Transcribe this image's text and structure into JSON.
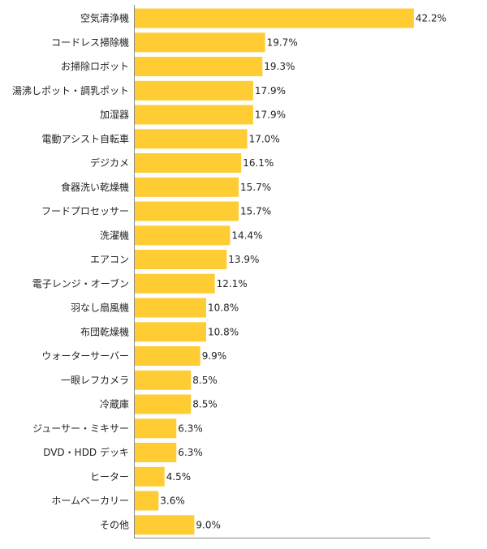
{
  "chart_data": {
    "type": "bar",
    "orientation": "horizontal",
    "categories": [
      "空気清浄機",
      "コードレス掃除機",
      "お掃除ロボット",
      "湯沸しポット・調乳ポット",
      "加湿器",
      "電動アシスト自転車",
      "デジカメ",
      "食器洗い乾燥機",
      "フードプロセッサー",
      "洗濯機",
      "エアコン",
      "電子レンジ・オーブン",
      "羽なし扇風機",
      "布団乾燥機",
      "ウォーターサーバー",
      "一眼レフカメラ",
      "冷蔵庫",
      "ジューサー・ミキサー",
      "DVD・HDD デッキ",
      "ヒーター",
      "ホームベーカリー",
      "その他"
    ],
    "values": [
      42.2,
      19.7,
      19.3,
      17.9,
      17.9,
      17.0,
      16.1,
      15.7,
      15.7,
      14.4,
      13.9,
      12.1,
      10.8,
      10.8,
      9.9,
      8.5,
      8.5,
      6.3,
      6.3,
      4.5,
      3.6,
      9.0
    ],
    "value_labels": [
      "42.2%",
      "19.7%",
      "19.3%",
      "17.9%",
      "17.9%",
      "17.0%",
      "16.1%",
      "15.7%",
      "15.7%",
      "14.4%",
      "13.9%",
      "12.1%",
      "10.8%",
      "10.8%",
      "9.9%",
      "8.5%",
      "8.5%",
      "6.3%",
      "6.3%",
      "4.5%",
      "3.6%",
      "9.0%"
    ],
    "title": "",
    "xlabel": "",
    "ylabel": "",
    "xlim": [
      0,
      50
    ],
    "grid": false,
    "legend": "none",
    "bar_color": "#FFCC33"
  }
}
